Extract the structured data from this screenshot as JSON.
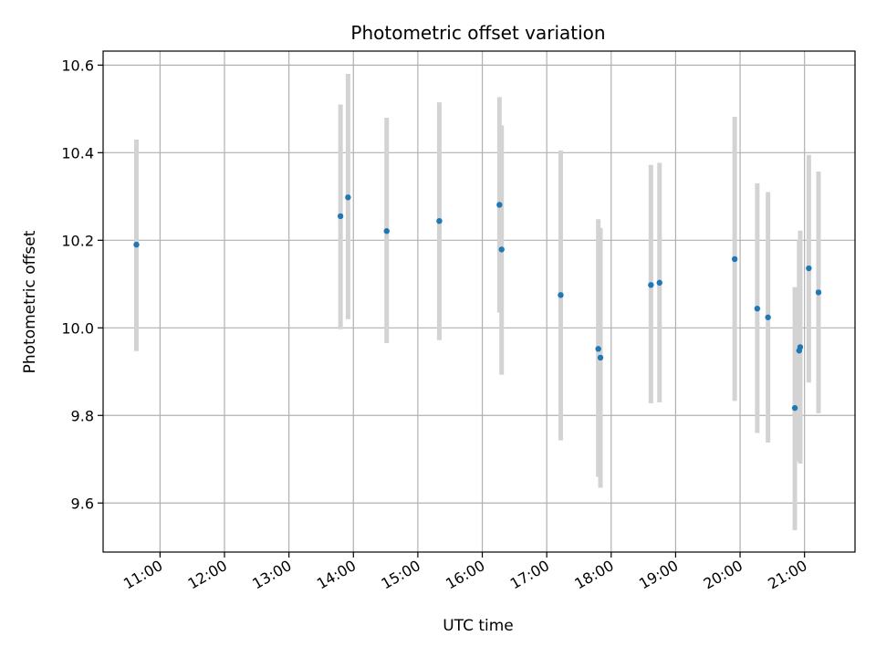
{
  "chart_data": {
    "type": "scatter",
    "title": "Photometric offset variation",
    "xlabel": "UTC time",
    "ylabel": "Photometric offset",
    "xlim": [
      "10:07",
      "21:47"
    ],
    "ylim": [
      9.488,
      10.632
    ],
    "x_ticks": [
      "11:00",
      "12:00",
      "13:00",
      "14:00",
      "15:00",
      "16:00",
      "17:00",
      "18:00",
      "19:00",
      "20:00",
      "21:00"
    ],
    "y_ticks": [
      9.6,
      9.8,
      10.0,
      10.2,
      10.4,
      10.6
    ],
    "y_tick_labels": [
      "9.6",
      "9.8",
      "10.0",
      "10.2",
      "10.4",
      "10.6"
    ],
    "grid": true,
    "colors": {
      "point": "#1f77b4",
      "errorbar": "#d3d3d3",
      "grid": "#b0b0b0"
    },
    "points": [
      {
        "time": "10:38",
        "y": 10.19,
        "yerr_low": 9.947,
        "yerr_high": 10.43
      },
      {
        "time": "13:48",
        "y": 10.255,
        "yerr_low": 9.997,
        "yerr_high": 10.51
      },
      {
        "time": "13:55",
        "y": 10.298,
        "yerr_low": 10.02,
        "yerr_high": 10.58
      },
      {
        "time": "14:31",
        "y": 10.221,
        "yerr_low": 9.965,
        "yerr_high": 10.48
      },
      {
        "time": "15:20",
        "y": 10.244,
        "yerr_low": 9.972,
        "yerr_high": 10.515
      },
      {
        "time": "16:16",
        "y": 10.281,
        "yerr_low": 10.035,
        "yerr_high": 10.527
      },
      {
        "time": "16:18",
        "y": 10.179,
        "yerr_low": 9.893,
        "yerr_high": 10.462
      },
      {
        "time": "17:13",
        "y": 10.075,
        "yerr_low": 9.743,
        "yerr_high": 10.405
      },
      {
        "time": "17:48",
        "y": 9.952,
        "yerr_low": 9.66,
        "yerr_high": 10.248
      },
      {
        "time": "17:50",
        "y": 9.932,
        "yerr_low": 9.635,
        "yerr_high": 10.228
      },
      {
        "time": "18:37",
        "y": 10.098,
        "yerr_low": 9.828,
        "yerr_high": 10.372
      },
      {
        "time": "18:45",
        "y": 10.103,
        "yerr_low": 9.83,
        "yerr_high": 10.377
      },
      {
        "time": "19:55",
        "y": 10.157,
        "yerr_low": 9.833,
        "yerr_high": 10.482
      },
      {
        "time": "20:16",
        "y": 10.044,
        "yerr_low": 9.76,
        "yerr_high": 10.33
      },
      {
        "time": "20:26",
        "y": 10.024,
        "yerr_low": 9.738,
        "yerr_high": 10.31
      },
      {
        "time": "20:51",
        "y": 9.817,
        "yerr_low": 9.538,
        "yerr_high": 10.093
      },
      {
        "time": "20:55",
        "y": 9.948,
        "yerr_low": 9.695,
        "yerr_high": 10.2
      },
      {
        "time": "20:56",
        "y": 9.956,
        "yerr_low": 9.69,
        "yerr_high": 10.222
      },
      {
        "time": "21:04",
        "y": 10.136,
        "yerr_low": 9.875,
        "yerr_high": 10.395
      },
      {
        "time": "21:13",
        "y": 10.081,
        "yerr_low": 9.805,
        "yerr_high": 10.357
      }
    ]
  }
}
